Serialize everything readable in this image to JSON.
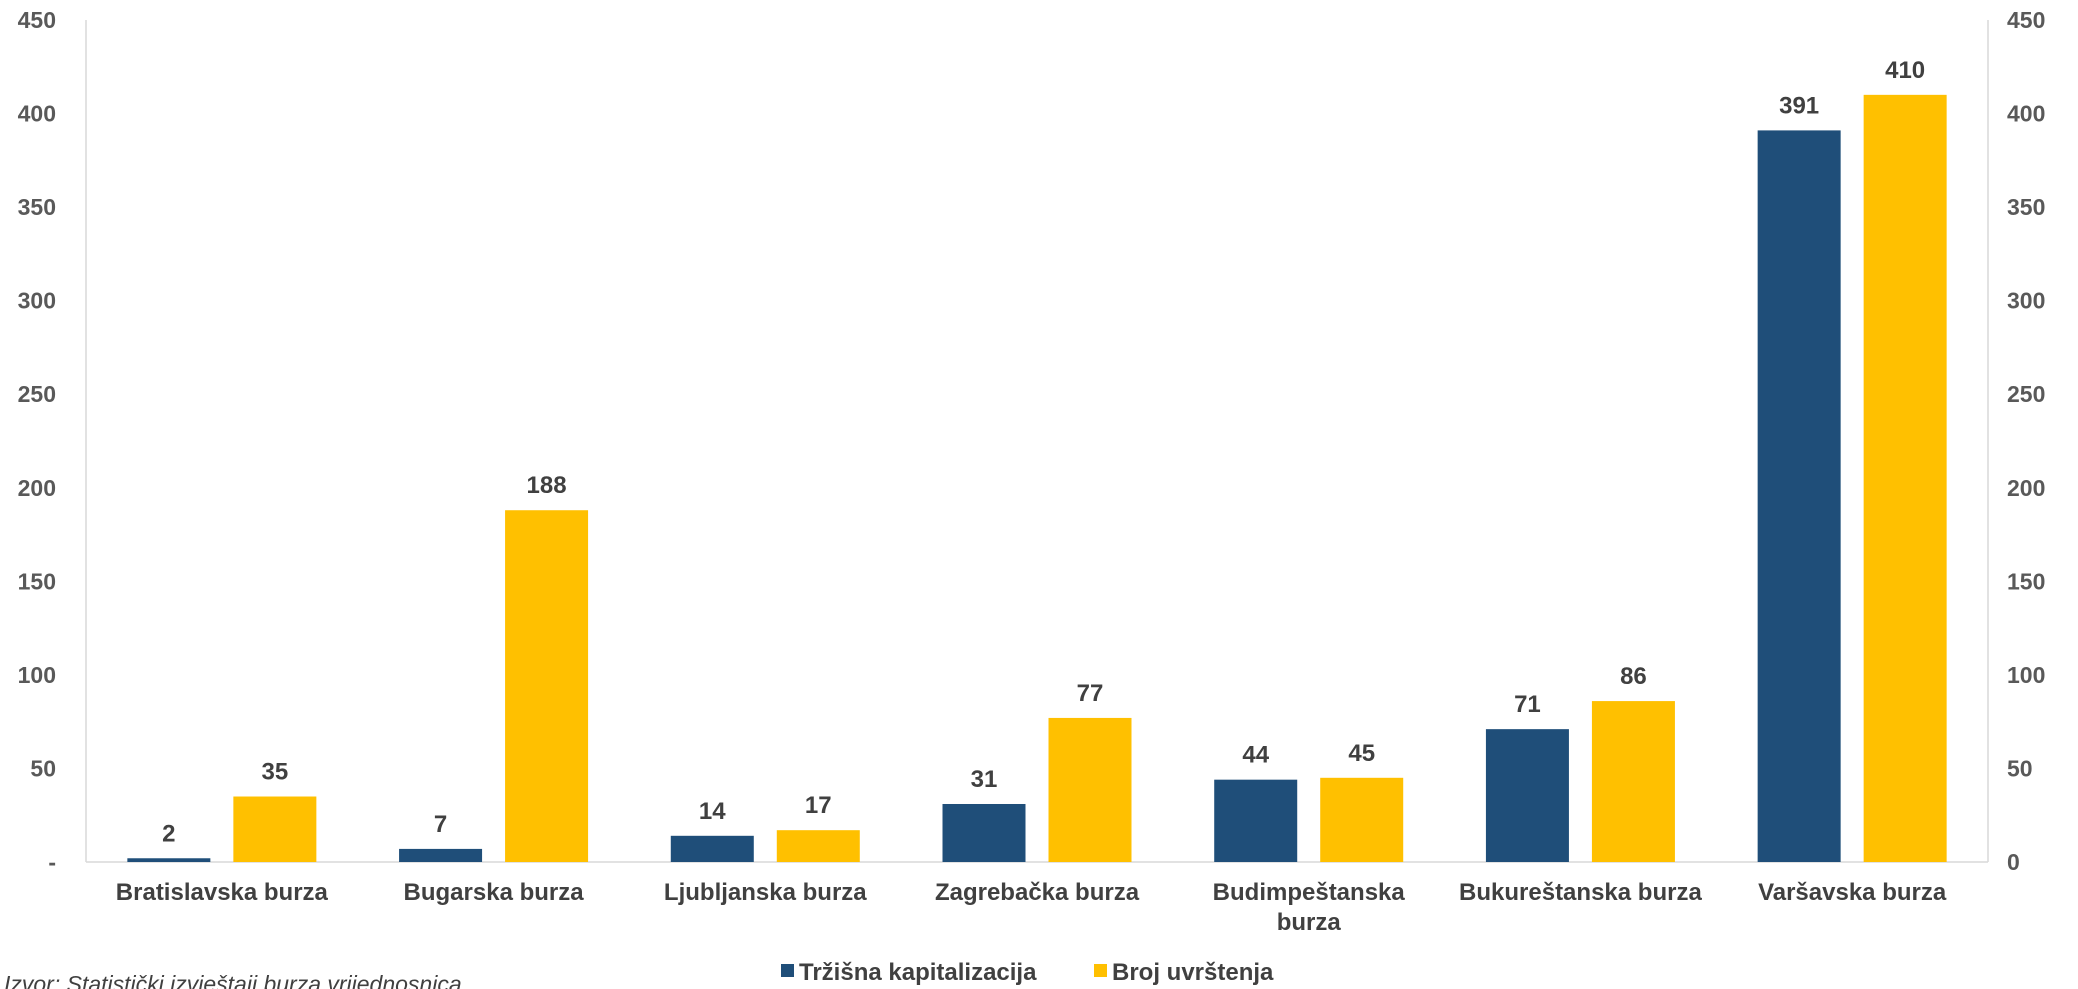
{
  "chart_data": {
    "type": "bar",
    "categories": [
      [
        "Bratislavska burza"
      ],
      [
        "Bugarska burza"
      ],
      [
        "Ljubljanska burza"
      ],
      [
        "Zagrebačka burza"
      ],
      [
        "Budimpeštanska",
        "burza"
      ],
      [
        "Bukureštanska burza"
      ],
      [
        "Varšavska burza"
      ]
    ],
    "series": [
      {
        "name": "Tržišna kapitalizacija",
        "color": "#1F4E79",
        "values": [
          2,
          7,
          14,
          31,
          44,
          71,
          391
        ]
      },
      {
        "name": "Broj uvrštenja",
        "color": "#FFC000",
        "values": [
          35,
          188,
          17,
          77,
          45,
          86,
          410
        ]
      }
    ],
    "ylim": [
      0,
      450
    ],
    "y_ticks": [
      0,
      50,
      100,
      150,
      200,
      250,
      300,
      350,
      400,
      450
    ],
    "y_tick_labels_left": [
      "-",
      "50",
      "100",
      "150",
      "200",
      "250",
      "300",
      "350",
      "400",
      "450"
    ],
    "y_tick_labels_right": [
      "0",
      "50",
      "100",
      "150",
      "200",
      "250",
      "300",
      "350",
      "400",
      "450"
    ],
    "legend_position": "bottom",
    "grid": false,
    "source": "Izvor: Statistički izvještaji burza vrijednosnica"
  }
}
